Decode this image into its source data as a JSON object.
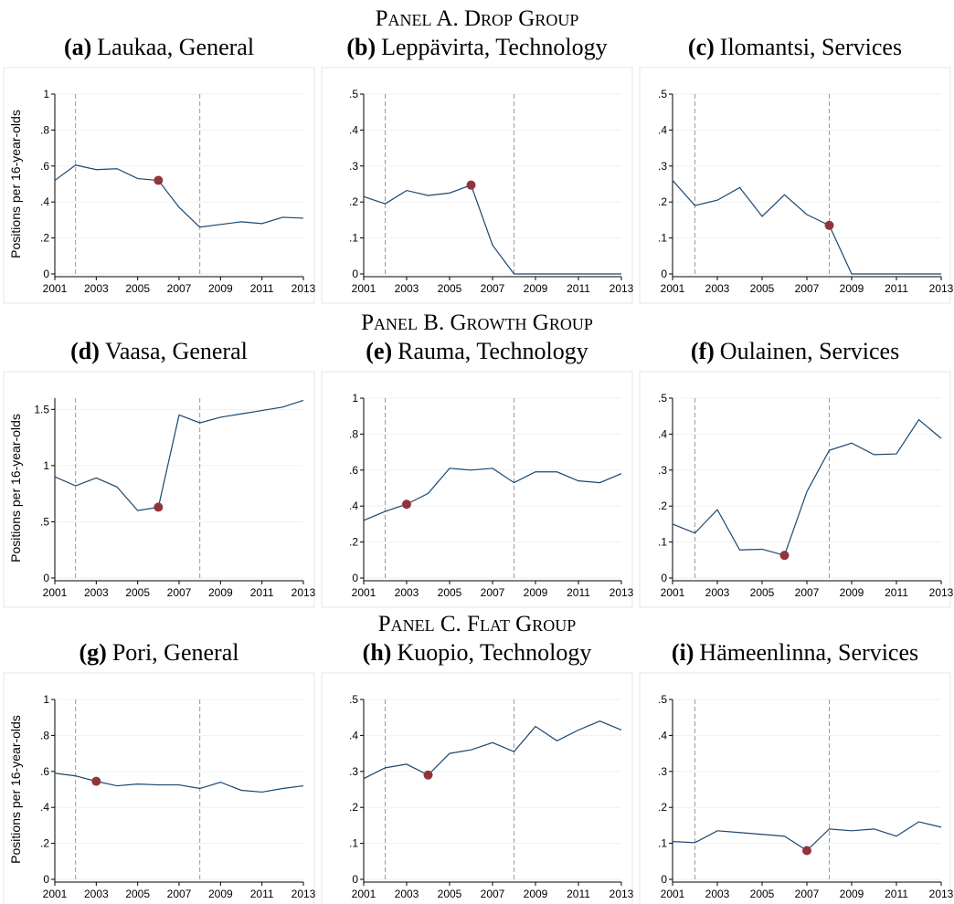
{
  "headings": [
    "Panel A. Drop Group",
    "Panel B. Growth Group",
    "Panel C. Flat Group"
  ],
  "chart_data": [
    {
      "type": "line",
      "label": "(a)",
      "title": "Laukaa, General",
      "y_label": "Positions per 16-year-olds",
      "x": [
        2001,
        2002,
        2003,
        2004,
        2005,
        2006,
        2007,
        2008,
        2009,
        2010,
        2011,
        2012,
        2013
      ],
      "series": [
        {
          "color": "#1a476f",
          "values": [
            0.52,
            0.605,
            0.58,
            0.585,
            0.53,
            0.52,
            0.37,
            0.26,
            0.275,
            0.29,
            0.28,
            0.315,
            0.31
          ]
        }
      ],
      "highlight_x": 2006,
      "highlight_color": "#90353b",
      "vlines": [
        2002,
        2008
      ],
      "xlim": [
        2001,
        2013
      ],
      "xticks": [
        2001,
        2003,
        2005,
        2007,
        2009,
        2011,
        2013
      ],
      "ylim": [
        0,
        1
      ],
      "yticks": [
        0,
        {
          "value": 0.2,
          "label": ".2"
        },
        {
          "value": 0.4,
          "label": ".4"
        },
        {
          "value": 0.6,
          "label": ".6"
        },
        {
          "value": 0.8,
          "label": ".8"
        },
        1
      ],
      "grid": true
    },
    {
      "type": "line",
      "label": "(b)",
      "title": "Leppävirta, Technology",
      "x": [
        2001,
        2002,
        2003,
        2004,
        2005,
        2006,
        2007,
        2008,
        2009,
        2010,
        2011,
        2012,
        2013
      ],
      "series": [
        {
          "color": "#1a476f",
          "values": [
            0.215,
            0.195,
            0.232,
            0.218,
            0.225,
            0.247,
            0.08,
            0,
            0,
            0,
            0,
            0,
            0
          ]
        }
      ],
      "highlight_x": 2006,
      "highlight_color": "#90353b",
      "vlines": [
        2002,
        2008
      ],
      "xlim": [
        2001,
        2013
      ],
      "xticks": [
        2001,
        2003,
        2005,
        2007,
        2009,
        2011,
        2013
      ],
      "ylim": [
        0,
        0.5
      ],
      "yticks": [
        0,
        {
          "value": 0.1,
          "label": ".1"
        },
        {
          "value": 0.2,
          "label": ".2"
        },
        {
          "value": 0.3,
          "label": ".3"
        },
        {
          "value": 0.4,
          "label": ".4"
        },
        {
          "value": 0.5,
          "label": ".5"
        }
      ],
      "grid": true
    },
    {
      "type": "line",
      "label": "(c)",
      "title": "Ilomantsi, Services",
      "x": [
        2001,
        2002,
        2003,
        2004,
        2005,
        2006,
        2007,
        2008,
        2009,
        2010,
        2011,
        2012,
        2013
      ],
      "series": [
        {
          "color": "#1a476f",
          "values": [
            0.26,
            0.19,
            0.205,
            0.24,
            0.16,
            0.22,
            0.165,
            0.135,
            0,
            0,
            0,
            0,
            0
          ]
        }
      ],
      "highlight_x": 2008,
      "highlight_color": "#90353b",
      "vlines": [
        2002,
        2008
      ],
      "xlim": [
        2001,
        2013
      ],
      "xticks": [
        2001,
        2003,
        2005,
        2007,
        2009,
        2011,
        2013
      ],
      "ylim": [
        0,
        0.5
      ],
      "yticks": [
        0,
        {
          "value": 0.1,
          "label": ".1"
        },
        {
          "value": 0.2,
          "label": ".2"
        },
        {
          "value": 0.3,
          "label": ".3"
        },
        {
          "value": 0.4,
          "label": ".4"
        },
        {
          "value": 0.5,
          "label": ".5"
        }
      ],
      "grid": true
    },
    {
      "type": "line",
      "label": "(d)",
      "title": "Vaasa, General",
      "y_label": "Positions per 16-year-olds",
      "x": [
        2001,
        2002,
        2003,
        2004,
        2005,
        2006,
        2007,
        2008,
        2009,
        2010,
        2011,
        2012,
        2013
      ],
      "series": [
        {
          "color": "#1a476f",
          "values": [
            0.9,
            0.82,
            0.89,
            0.81,
            0.6,
            0.63,
            1.45,
            1.38,
            1.43,
            1.46,
            1.49,
            1.52,
            1.58
          ]
        }
      ],
      "highlight_x": 2006,
      "highlight_color": "#90353b",
      "vlines": [
        2002,
        2008
      ],
      "xlim": [
        2001,
        2013
      ],
      "xticks": [
        2001,
        2003,
        2005,
        2007,
        2009,
        2011,
        2013
      ],
      "ylim": [
        0,
        1.6
      ],
      "yticks": [
        0,
        {
          "value": 0.5,
          "label": ".5"
        },
        1,
        1.5
      ],
      "grid": true
    },
    {
      "type": "line",
      "label": "(e)",
      "title": "Rauma, Technology",
      "x": [
        2001,
        2002,
        2003,
        2004,
        2005,
        2006,
        2007,
        2008,
        2009,
        2010,
        2011,
        2012,
        2013
      ],
      "series": [
        {
          "color": "#1a476f",
          "values": [
            0.32,
            0.37,
            0.41,
            0.47,
            0.61,
            0.6,
            0.61,
            0.53,
            0.59,
            0.59,
            0.54,
            0.53,
            0.58
          ]
        }
      ],
      "highlight_x": 2003,
      "highlight_color": "#90353b",
      "vlines": [
        2002,
        2008
      ],
      "xlim": [
        2001,
        2013
      ],
      "xticks": [
        2001,
        2003,
        2005,
        2007,
        2009,
        2011,
        2013
      ],
      "ylim": [
        0,
        1
      ],
      "yticks": [
        0,
        {
          "value": 0.2,
          "label": ".2"
        },
        {
          "value": 0.4,
          "label": ".4"
        },
        {
          "value": 0.6,
          "label": ".6"
        },
        {
          "value": 0.8,
          "label": ".8"
        },
        1
      ],
      "grid": true
    },
    {
      "type": "line",
      "label": "(f)",
      "title": "Oulainen, Services",
      "x": [
        2001,
        2002,
        2003,
        2004,
        2005,
        2006,
        2007,
        2008,
        2009,
        2010,
        2011,
        2012,
        2013
      ],
      "series": [
        {
          "color": "#1a476f",
          "values": [
            0.15,
            0.125,
            0.19,
            0.078,
            0.08,
            0.063,
            0.24,
            0.355,
            0.375,
            0.343,
            0.345,
            0.44,
            0.388
          ]
        }
      ],
      "highlight_x": 2006,
      "highlight_color": "#90353b",
      "vlines": [
        2002,
        2008
      ],
      "xlim": [
        2001,
        2013
      ],
      "xticks": [
        2001,
        2003,
        2005,
        2007,
        2009,
        2011,
        2013
      ],
      "ylim": [
        0,
        0.5
      ],
      "yticks": [
        0,
        {
          "value": 0.1,
          "label": ".1"
        },
        {
          "value": 0.2,
          "label": ".2"
        },
        {
          "value": 0.3,
          "label": ".3"
        },
        {
          "value": 0.4,
          "label": ".4"
        },
        {
          "value": 0.5,
          "label": ".5"
        }
      ],
      "grid": true
    },
    {
      "type": "line",
      "label": "(g)",
      "title": "Pori, General",
      "y_label": "Positions per 16-year-olds",
      "x": [
        2001,
        2002,
        2003,
        2004,
        2005,
        2006,
        2007,
        2008,
        2009,
        2010,
        2011,
        2012,
        2013
      ],
      "series": [
        {
          "color": "#1a476f",
          "values": [
            0.59,
            0.575,
            0.545,
            0.52,
            0.53,
            0.525,
            0.525,
            0.505,
            0.54,
            0.495,
            0.485,
            0.505,
            0.52
          ]
        }
      ],
      "highlight_x": 2003,
      "highlight_color": "#90353b",
      "vlines": [
        2002,
        2008
      ],
      "xlim": [
        2001,
        2013
      ],
      "xticks": [
        2001,
        2003,
        2005,
        2007,
        2009,
        2011,
        2013
      ],
      "ylim": [
        0,
        1
      ],
      "yticks": [
        0,
        {
          "value": 0.2,
          "label": ".2"
        },
        {
          "value": 0.4,
          "label": ".4"
        },
        {
          "value": 0.6,
          "label": ".6"
        },
        {
          "value": 0.8,
          "label": ".8"
        },
        1
      ],
      "grid": true
    },
    {
      "type": "line",
      "label": "(h)",
      "title": "Kuopio, Technology",
      "x": [
        2001,
        2002,
        2003,
        2004,
        2005,
        2006,
        2007,
        2008,
        2009,
        2010,
        2011,
        2012,
        2013
      ],
      "series": [
        {
          "color": "#1a476f",
          "values": [
            0.28,
            0.31,
            0.32,
            0.29,
            0.35,
            0.36,
            0.38,
            0.355,
            0.425,
            0.385,
            0.415,
            0.44,
            0.415
          ]
        }
      ],
      "highlight_x": 2004,
      "highlight_color": "#90353b",
      "vlines": [
        2002,
        2008
      ],
      "xlim": [
        2001,
        2013
      ],
      "xticks": [
        2001,
        2003,
        2005,
        2007,
        2009,
        2011,
        2013
      ],
      "ylim": [
        0,
        0.5
      ],
      "yticks": [
        0,
        {
          "value": 0.1,
          "label": ".1"
        },
        {
          "value": 0.2,
          "label": ".2"
        },
        {
          "value": 0.3,
          "label": ".3"
        },
        {
          "value": 0.4,
          "label": ".4"
        },
        {
          "value": 0.5,
          "label": ".5"
        }
      ],
      "grid": true
    },
    {
      "type": "line",
      "label": "(i)",
      "title": "Hämeenlinna, Services",
      "x": [
        2001,
        2002,
        2003,
        2004,
        2005,
        2006,
        2007,
        2008,
        2009,
        2010,
        2011,
        2012,
        2013
      ],
      "series": [
        {
          "color": "#1a476f",
          "values": [
            0.105,
            0.102,
            0.135,
            0.13,
            0.125,
            0.12,
            0.08,
            0.14,
            0.135,
            0.14,
            0.12,
            0.16,
            0.145
          ]
        }
      ],
      "highlight_x": 2007,
      "highlight_color": "#90353b",
      "vlines": [
        2002,
        2008
      ],
      "xlim": [
        2001,
        2013
      ],
      "xticks": [
        2001,
        2003,
        2005,
        2007,
        2009,
        2011,
        2013
      ],
      "ylim": [
        0,
        0.5
      ],
      "yticks": [
        0,
        {
          "value": 0.1,
          "label": ".1"
        },
        {
          "value": 0.2,
          "label": ".2"
        },
        {
          "value": 0.3,
          "label": ".3"
        },
        {
          "value": 0.4,
          "label": ".4"
        },
        {
          "value": 0.5,
          "label": ".5"
        }
      ],
      "grid": true
    }
  ]
}
